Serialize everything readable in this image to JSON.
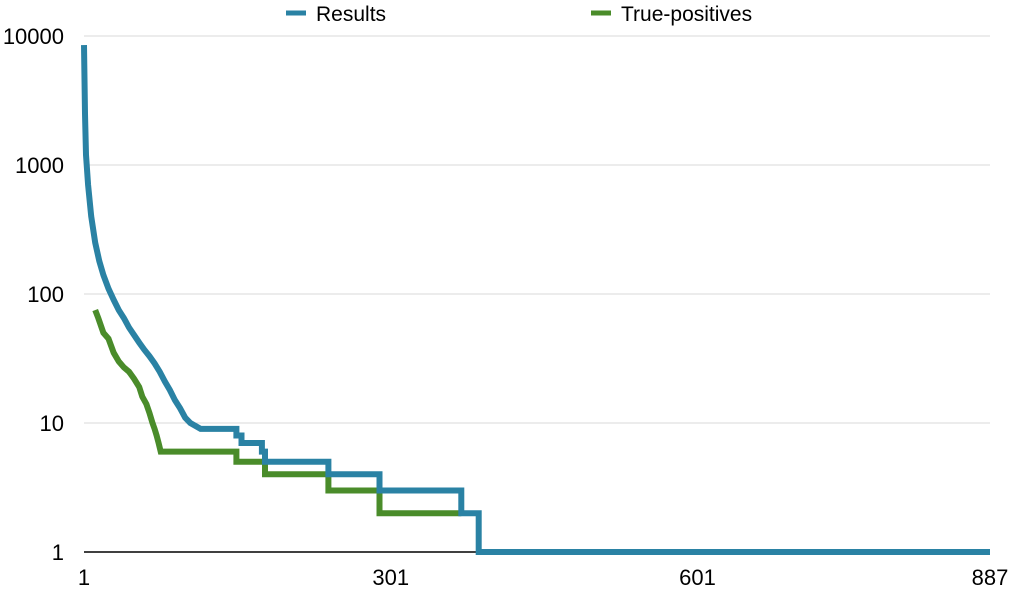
{
  "chart_data": {
    "type": "line",
    "y_scale": "log",
    "ylim": [
      1,
      10000
    ],
    "xlim": [
      1,
      887
    ],
    "grid": true,
    "legend_position": "top-center",
    "x_ticks": [
      "1",
      "301",
      "601",
      "887"
    ],
    "y_ticks": [
      "1",
      "10",
      "100",
      "1000",
      "10000"
    ],
    "series": [
      {
        "name": "Results",
        "color": "#2a82a4",
        "points": [
          [
            1,
            8500
          ],
          [
            2,
            2500
          ],
          [
            3,
            1200
          ],
          [
            5,
            700
          ],
          [
            8,
            400
          ],
          [
            12,
            250
          ],
          [
            16,
            180
          ],
          [
            20,
            140
          ],
          [
            25,
            110
          ],
          [
            30,
            90
          ],
          [
            35,
            75
          ],
          [
            40,
            65
          ],
          [
            45,
            55
          ],
          [
            50,
            48
          ],
          [
            55,
            42
          ],
          [
            60,
            37
          ],
          [
            65,
            33
          ],
          [
            70,
            29
          ],
          [
            75,
            25
          ],
          [
            80,
            21
          ],
          [
            85,
            18
          ],
          [
            90,
            15
          ],
          [
            95,
            13
          ],
          [
            100,
            11
          ],
          [
            105,
            10
          ],
          [
            115,
            9
          ],
          [
            150,
            9
          ],
          [
            150,
            8
          ],
          [
            155,
            8
          ],
          [
            155,
            7
          ],
          [
            175,
            7
          ],
          [
            175,
            6
          ],
          [
            178,
            6
          ],
          [
            178,
            5
          ],
          [
            240,
            5
          ],
          [
            240,
            4
          ],
          [
            290,
            4
          ],
          [
            290,
            3
          ],
          [
            370,
            3
          ],
          [
            370,
            2
          ],
          [
            387,
            2
          ],
          [
            387,
            1
          ],
          [
            887,
            1
          ]
        ]
      },
      {
        "name": "True-positives",
        "color": "#4a8c2a",
        "points": [
          [
            12,
            75
          ],
          [
            15,
            65
          ],
          [
            20,
            50
          ],
          [
            25,
            45
          ],
          [
            30,
            35
          ],
          [
            35,
            30
          ],
          [
            40,
            27
          ],
          [
            45,
            25
          ],
          [
            50,
            22
          ],
          [
            55,
            19
          ],
          [
            58,
            16
          ],
          [
            62,
            14
          ],
          [
            65,
            12
          ],
          [
            68,
            10
          ],
          [
            70,
            9
          ],
          [
            72,
            8
          ],
          [
            74,
            7
          ],
          [
            76,
            6
          ],
          [
            150,
            6
          ],
          [
            150,
            5
          ],
          [
            178,
            5
          ],
          [
            178,
            4
          ],
          [
            240,
            4
          ],
          [
            240,
            3
          ],
          [
            290,
            3
          ],
          [
            290,
            2
          ],
          [
            370,
            2
          ]
        ]
      }
    ]
  }
}
